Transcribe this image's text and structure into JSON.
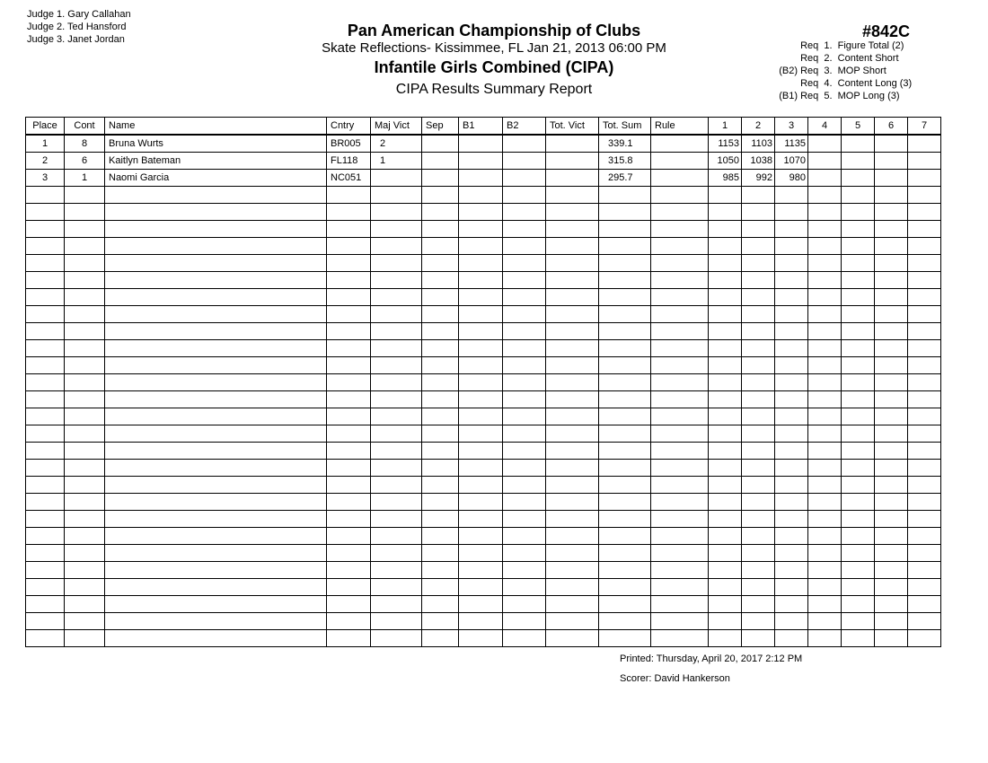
{
  "judges": [
    "Judge  1.  Gary Callahan",
    "Judge  2.  Ted Hansford",
    "Judge  3.  Janet Jordan"
  ],
  "header": {
    "title": "Pan American Championship of Clubs",
    "venue": "Skate Reflections- Kissimmee, FL  Jan 21, 2013  06:00 PM",
    "event": "Infantile Girls Combined (CIPA)",
    "report": "CIPA Results Summary Report",
    "event_number": "#842C"
  },
  "requirements": [
    {
      "prefix": "",
      "text": "Req  1.  Figure Total (2)"
    },
    {
      "prefix": "",
      "text": "Req  2.  Content Short"
    },
    {
      "prefix": "(B2)",
      "text": "Req  3.  MOP Short"
    },
    {
      "prefix": "",
      "text": "Req  4.  Content Long (3)"
    },
    {
      "prefix": "(B1)",
      "text": "Req  5.  MOP Long (3)"
    }
  ],
  "table": {
    "columns": [
      "Place",
      "Cont",
      "Name",
      "Cntry",
      "Maj Vict",
      "Sep",
      "B1",
      "B2",
      "Tot. Vict",
      "Tot. Sum",
      "Rule",
      "1",
      "2",
      "3",
      "4",
      "5",
      "6",
      "7"
    ],
    "rows": [
      [
        "1",
        "8",
        "Bruna Wurts",
        "BR005",
        "2",
        "",
        "",
        "",
        "",
        "339.1",
        "",
        "1153",
        "1103",
        "1135",
        "",
        "",
        "",
        ""
      ],
      [
        "2",
        "6",
        "Kaitlyn Bateman",
        "FL118",
        "1",
        "",
        "",
        "",
        "",
        "315.8",
        "",
        "1050",
        "1038",
        "1070",
        "",
        "",
        "",
        ""
      ],
      [
        "3",
        "1",
        "Naomi Garcia",
        "NC051",
        "",
        "",
        "",
        "",
        "",
        "295.7",
        "",
        "985",
        "992",
        "980",
        "",
        "",
        "",
        ""
      ]
    ]
  },
  "footer": {
    "printed": "Printed:  Thursday, April 20, 2017  2:12 PM",
    "scorer": "Scorer:  David Hankerson"
  }
}
